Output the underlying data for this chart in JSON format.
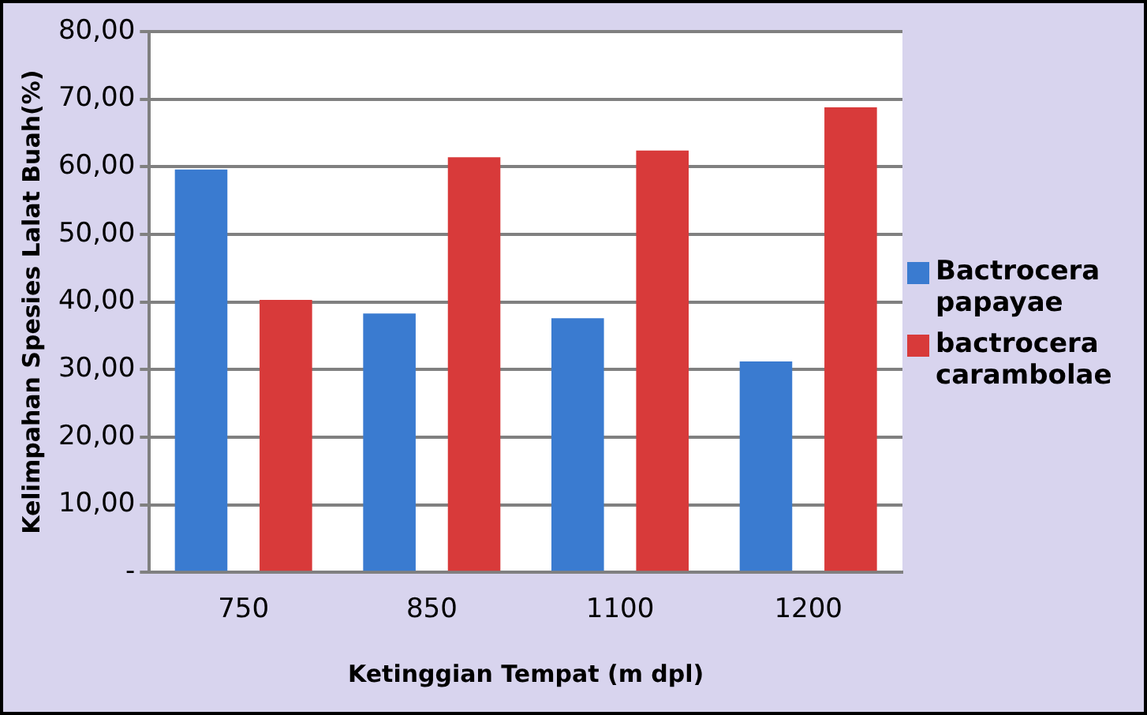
{
  "chart_data": {
    "type": "bar",
    "xlabel": "Ketinggian Tempat (m dpl)",
    "ylabel": "Kelimpahan Spesies Lalat Buah(%)",
    "categories": [
      "750",
      "850",
      "1100",
      "1200"
    ],
    "series": [
      {
        "name": "Bactrocera papayae",
        "color": "#3a7bd0",
        "values": [
          59.6,
          38.3,
          37.6,
          31.2
        ]
      },
      {
        "name": "bactrocera carambolae",
        "color": "#d83a3a",
        "values": [
          40.3,
          61.4,
          62.4,
          68.8
        ]
      }
    ],
    "ylim": [
      0,
      80
    ],
    "yticks": [
      {
        "value": 0,
        "label": "-"
      },
      {
        "value": 10,
        "label": "10,00"
      },
      {
        "value": 20,
        "label": "20,00"
      },
      {
        "value": 30,
        "label": "30,00"
      },
      {
        "value": 40,
        "label": "40,00"
      },
      {
        "value": 50,
        "label": "50,00"
      },
      {
        "value": 60,
        "label": "60,00"
      },
      {
        "value": 70,
        "label": "70,00"
      },
      {
        "value": 80,
        "label": "80,00"
      }
    ],
    "grid": "y",
    "legend": "right"
  }
}
